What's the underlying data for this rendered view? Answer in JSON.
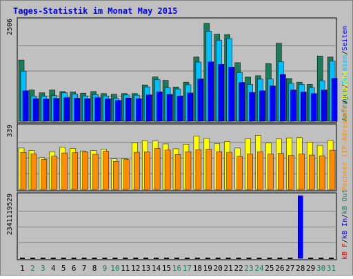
{
  "chart_data": {
    "type": "bar",
    "title": "Tages-Statistik im Monat May 2015",
    "categories": [
      "1",
      "2",
      "3",
      "4",
      "5",
      "6",
      "7",
      "8",
      "9",
      "10",
      "11",
      "12",
      "13",
      "14",
      "15",
      "16",
      "17",
      "18",
      "19",
      "20",
      "21",
      "22",
      "23",
      "24",
      "25",
      "26",
      "27",
      "28",
      "29",
      "30",
      "31"
    ],
    "weekend_days": [
      "2",
      "3",
      "9",
      "10",
      "16",
      "17",
      "23",
      "24",
      "30",
      "31"
    ],
    "grid": true,
    "panels": [
      {
        "id": "requests",
        "max_label": "2506",
        "ylim": [
          0,
          2506
        ],
        "series": [
          {
            "name": "Anfragen",
            "color": "#1a7a5a",
            "values": [
              1525,
              780,
              710,
              780,
              740,
              730,
              700,
              740,
              690,
              675,
              690,
              690,
              905,
              1105,
              1020,
              855,
              975,
              1600,
              2440,
              2170,
              2160,
              1460,
              1100,
              1135,
              1435,
              1945,
              1065,
              975,
              920,
              1625,
              1600
            ]
          },
          {
            "name": "Dateien",
            "color": "#00bfff",
            "values": [
              1250,
              625,
              620,
              640,
              710,
              680,
              630,
              665,
              630,
              575,
              655,
              650,
              855,
              1040,
              840,
              805,
              910,
              1475,
              2240,
              2020,
              2060,
              1215,
              920,
              1050,
              1055,
              1485,
              945,
              920,
              840,
              1010,
              1500
            ]
          },
          {
            "name": "Seiten",
            "color": "#0000ff",
            "values": [
              760,
              565,
              555,
              570,
              590,
              575,
              565,
              590,
              560,
              520,
              580,
              565,
              660,
              735,
              670,
              630,
              705,
              1055,
              1480,
              1420,
              1350,
              970,
              720,
              760,
              880,
              1165,
              780,
              730,
              690,
              780,
              1070
            ]
          }
        ]
      },
      {
        "id": "visits",
        "max_label": "339",
        "ylim": [
          0,
          339
        ],
        "series": [
          {
            "name": "Besuche",
            "color": "#ffff00",
            "values": [
              224,
              211,
              172,
              204,
              228,
              222,
              208,
              210,
              218,
              165,
              166,
              253,
              264,
              262,
              246,
              220,
              245,
              288,
              276,
              248,
              259,
              224,
              274,
              293,
              252,
              273,
              279,
              280,
              256,
              238,
              265
            ]
          },
          {
            "name": "Rechner (IP-Adressen)",
            "color": "#ff8c00",
            "values": [
              200,
              193,
              162,
              180,
              197,
              199,
              203,
              190,
              207,
              152,
              161,
              201,
              203,
              222,
              213,
              189,
              204,
              215,
              218,
              204,
              201,
              179,
              192,
              204,
              192,
              195,
              184,
              192,
              186,
              182,
              212
            ]
          }
        ]
      },
      {
        "id": "traffic",
        "max_label": "2341119529",
        "ylim": [
          0,
          2341119529
        ],
        "series": [
          {
            "name": "kB F",
            "color": "#ff0000",
            "values": [
              0,
              0,
              0,
              0,
              0,
              0,
              0,
              0,
              0,
              0,
              0,
              0,
              0,
              0,
              0,
              0,
              0,
              0,
              0,
              0,
              0,
              0,
              0,
              0,
              0,
              0,
              0,
              0,
              0,
              0,
              0
            ]
          },
          {
            "name": "kB In",
            "color": "#0000ff",
            "values": [
              0,
              0,
              0,
              0,
              0,
              0,
              0,
              0,
              0,
              0,
              0,
              0,
              0,
              0,
              0,
              0,
              0,
              0,
              0,
              0,
              0,
              0,
              0,
              0,
              0,
              0,
              0,
              2341119529,
              0,
              0,
              0
            ]
          },
          {
            "name": "kB Out",
            "color": "#1a7a5a",
            "values": [
              0,
              0,
              0,
              0,
              0,
              0,
              0,
              0,
              0,
              0,
              0,
              0,
              0,
              0,
              0,
              0,
              0,
              0,
              0,
              0,
              0,
              0,
              0,
              0,
              0,
              0,
              0,
              0,
              0,
              0,
              0
            ]
          }
        ]
      }
    ],
    "legend_requests": [
      {
        "text": "Anfragen",
        "color": "#1a7a5a"
      },
      {
        "text": "/",
        "color": "#000000"
      },
      {
        "text": "Dateien",
        "color": "#00bfff"
      },
      {
        "text": "/",
        "color": "#000000"
      },
      {
        "text": "Seiten",
        "color": "#0000ff"
      }
    ],
    "legend_visits": [
      {
        "text": "Rechner (IP-Adressen)",
        "color": "#ff8c00"
      },
      {
        "text": "/",
        "color": "#000000"
      },
      {
        "text": "Besuche",
        "color": "#ffff00"
      }
    ],
    "legend_traffic": [
      {
        "text": "kB F",
        "color": "#ff0000"
      },
      {
        "text": "/",
        "color": "#000000"
      },
      {
        "text": "kB In",
        "color": "#0000ff"
      },
      {
        "text": "/",
        "color": "#000000"
      },
      {
        "text": "kB Out",
        "color": "#1a7a5a"
      }
    ],
    "colors": {
      "title": "#0000ff",
      "weekday_label": "#000000",
      "weekend_label": "#1a7a5a",
      "panel_bg": "#c0c0c0",
      "border": "#808080"
    }
  }
}
